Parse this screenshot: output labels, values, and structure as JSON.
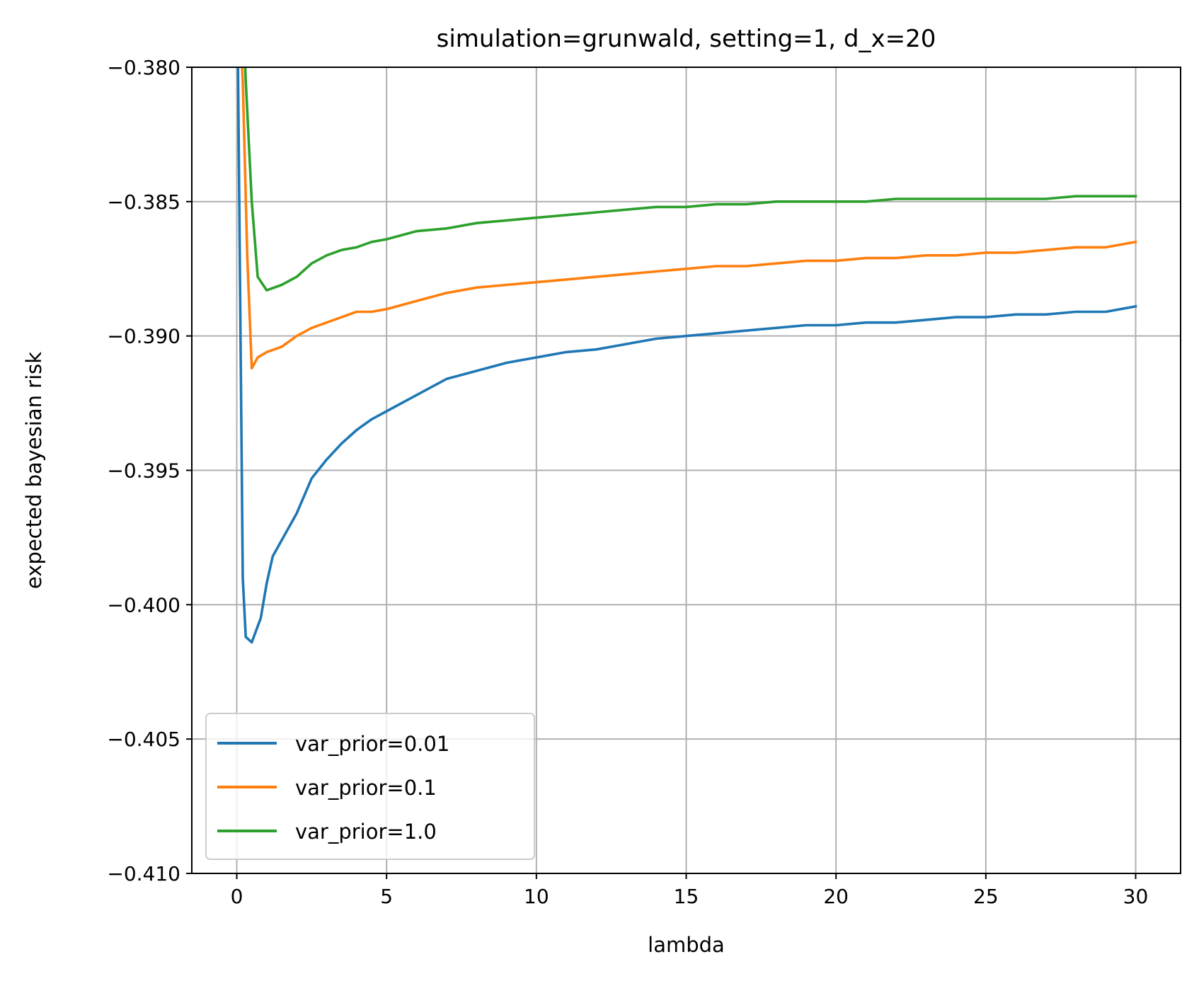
{
  "chart_data": {
    "type": "line",
    "title": "simulation=grunwald, setting=1, d_x=20",
    "xlabel": "lambda",
    "ylabel": "expected bayesian risk",
    "xlim": [
      -1.5,
      31.5
    ],
    "ylim": [
      -0.41,
      -0.38
    ],
    "x_ticks": [
      0,
      5,
      10,
      15,
      20,
      25,
      30
    ],
    "x_tick_labels": [
      "0",
      "5",
      "10",
      "15",
      "20",
      "25",
      "30"
    ],
    "y_ticks": [
      -0.41,
      -0.405,
      -0.4,
      -0.395,
      -0.39,
      -0.385,
      -0.38
    ],
    "y_tick_labels": [
      "−0.410",
      "−0.405",
      "−0.400",
      "−0.395",
      "−0.390",
      "−0.385",
      "−0.380"
    ],
    "grid": true,
    "legend_position": "lower-left",
    "series": [
      {
        "name": "var_prior=0.01",
        "color": "#1f77b4",
        "x": [
          0,
          0.2,
          0.3,
          0.5,
          0.8,
          1.0,
          1.2,
          1.5,
          2.0,
          2.5,
          3.0,
          3.5,
          4.0,
          4.5,
          5.0,
          6.0,
          7.0,
          8.0,
          9.0,
          10.0,
          11.0,
          12.0,
          13.0,
          14.0,
          15.0,
          16.0,
          17.0,
          18.0,
          19.0,
          20.0,
          21.0,
          22.0,
          23.0,
          24.0,
          25.0,
          26.0,
          27.0,
          28.0,
          29.0,
          30.0
        ],
        "y": [
          -0.375,
          -0.399,
          -0.4012,
          -0.4014,
          -0.4005,
          -0.3992,
          -0.3982,
          -0.3976,
          -0.3966,
          -0.3953,
          -0.3946,
          -0.394,
          -0.3935,
          -0.3931,
          -0.3928,
          -0.3922,
          -0.3916,
          -0.3913,
          -0.391,
          -0.3908,
          -0.3906,
          -0.3905,
          -0.3903,
          -0.3901,
          -0.39,
          -0.3899,
          -0.3898,
          -0.3897,
          -0.3896,
          -0.3896,
          -0.3895,
          -0.3895,
          -0.3894,
          -0.3893,
          -0.3893,
          -0.3892,
          -0.3892,
          -0.3891,
          -0.3891,
          -0.3889
        ]
      },
      {
        "name": "var_prior=0.1",
        "color": "#ff7f0e",
        "x": [
          0,
          0.2,
          0.35,
          0.5,
          0.7,
          1.0,
          1.5,
          2.0,
          2.5,
          3.0,
          3.5,
          4.0,
          4.5,
          5.0,
          6.0,
          7.0,
          8.0,
          9.0,
          10.0,
          11.0,
          12.0,
          13.0,
          14.0,
          15.0,
          16.0,
          17.0,
          18.0,
          19.0,
          20.0,
          21.0,
          22.0,
          23.0,
          24.0,
          25.0,
          26.0,
          27.0,
          28.0,
          29.0,
          30.0
        ],
        "y": [
          -0.376,
          -0.3805,
          -0.387,
          -0.3912,
          -0.3908,
          -0.3906,
          -0.3904,
          -0.39,
          -0.3897,
          -0.3895,
          -0.3893,
          -0.3891,
          -0.3891,
          -0.389,
          -0.3887,
          -0.3884,
          -0.3882,
          -0.3881,
          -0.388,
          -0.3879,
          -0.3878,
          -0.3877,
          -0.3876,
          -0.3875,
          -0.3874,
          -0.3874,
          -0.3873,
          -0.3872,
          -0.3872,
          -0.3871,
          -0.3871,
          -0.387,
          -0.387,
          -0.3869,
          -0.3869,
          -0.3868,
          -0.3867,
          -0.3867,
          -0.3865
        ]
      },
      {
        "name": "var_prior=1.0",
        "color": "#2ca02c",
        "x": [
          0.15,
          0.3,
          0.5,
          0.7,
          1.0,
          1.5,
          2.0,
          2.5,
          3.0,
          3.5,
          4.0,
          4.5,
          5.0,
          6.0,
          7.0,
          8.0,
          9.0,
          10.0,
          11.0,
          12.0,
          13.0,
          14.0,
          15.0,
          16.0,
          17.0,
          18.0,
          19.0,
          20.0,
          21.0,
          22.0,
          23.0,
          24.0,
          25.0,
          26.0,
          27.0,
          28.0,
          29.0,
          30.0
        ],
        "y": [
          -0.376,
          -0.3805,
          -0.385,
          -0.3878,
          -0.3883,
          -0.3881,
          -0.3878,
          -0.3873,
          -0.387,
          -0.3868,
          -0.3867,
          -0.3865,
          -0.3864,
          -0.3861,
          -0.386,
          -0.3858,
          -0.3857,
          -0.3856,
          -0.3855,
          -0.3854,
          -0.3853,
          -0.3852,
          -0.3852,
          -0.3851,
          -0.3851,
          -0.385,
          -0.385,
          -0.385,
          -0.385,
          -0.3849,
          -0.3849,
          -0.3849,
          -0.3849,
          -0.3849,
          -0.3849,
          -0.3848,
          -0.3848,
          -0.3848
        ]
      }
    ]
  }
}
